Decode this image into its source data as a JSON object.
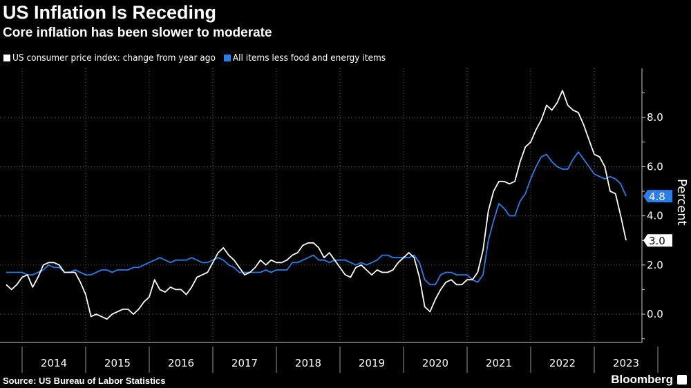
{
  "title": "US Inflation Is Receding",
  "subtitle": "Core inflation has been slower to moderate",
  "source": "Source: US Bureau of Labor Statistics",
  "brand": "Bloomberg",
  "chart_data": {
    "type": "line",
    "title": "US Inflation Is Receding",
    "subtitle": "Core inflation has been slower to moderate",
    "ylabel": "Percent",
    "ylim": [
      -1.15,
      10
    ],
    "yticks": [
      "0.0",
      "2.0",
      "4.0",
      "6.0",
      "8.0"
    ],
    "ytick_values": [
      0,
      2,
      4,
      6,
      8
    ],
    "xtick_labels": [
      "2014",
      "2015",
      "2016",
      "2017",
      "2018",
      "2019",
      "2020",
      "2021",
      "2022",
      "2023"
    ],
    "x_start": "2013-09",
    "x_end": "2023-06",
    "frequency": "monthly",
    "grid": true,
    "legend": "top-left",
    "series": [
      {
        "name": "US consumer price index: change from year ago",
        "color": "#ffffff",
        "end_label": "3.0",
        "values": [
          1.2,
          1.0,
          1.2,
          1.5,
          1.6,
          1.1,
          1.5,
          2.0,
          2.1,
          2.1,
          2.0,
          1.7,
          1.7,
          1.7,
          1.3,
          0.8,
          -0.1,
          0.0,
          -0.1,
          -0.2,
          0.0,
          0.1,
          0.2,
          0.2,
          0.0,
          0.2,
          0.5,
          0.7,
          1.4,
          1.0,
          0.9,
          1.1,
          1.0,
          1.0,
          0.8,
          1.1,
          1.5,
          1.6,
          1.7,
          2.1,
          2.5,
          2.7,
          2.4,
          2.2,
          1.9,
          1.6,
          1.7,
          1.9,
          2.2,
          2.0,
          2.2,
          2.1,
          2.1,
          2.2,
          2.4,
          2.5,
          2.8,
          2.9,
          2.9,
          2.7,
          2.3,
          2.5,
          2.2,
          1.9,
          1.6,
          1.5,
          1.9,
          2.0,
          1.8,
          1.6,
          1.8,
          1.7,
          1.7,
          1.8,
          2.1,
          2.3,
          2.5,
          2.3,
          1.5,
          0.3,
          0.1,
          0.6,
          1.0,
          1.3,
          1.4,
          1.2,
          1.2,
          1.4,
          1.4,
          1.7,
          2.6,
          4.2,
          5.0,
          5.4,
          5.4,
          5.3,
          5.4,
          6.2,
          6.8,
          7.0,
          7.5,
          7.9,
          8.5,
          8.3,
          8.6,
          9.1,
          8.5,
          8.3,
          8.2,
          7.7,
          7.1,
          6.5,
          6.4,
          6.0,
          5.0,
          4.9,
          4.0,
          3.0
        ]
      },
      {
        "name": "All items less food and energy items",
        "color": "#2b7de9",
        "end_label": "4.8",
        "values": [
          1.7,
          1.7,
          1.7,
          1.7,
          1.6,
          1.6,
          1.7,
          1.8,
          2.0,
          1.9,
          1.9,
          1.7,
          1.7,
          1.8,
          1.7,
          1.6,
          1.6,
          1.7,
          1.8,
          1.8,
          1.7,
          1.8,
          1.8,
          1.8,
          1.9,
          1.9,
          2.0,
          2.1,
          2.2,
          2.3,
          2.2,
          2.1,
          2.2,
          2.2,
          2.2,
          2.3,
          2.2,
          2.1,
          2.1,
          2.2,
          2.3,
          2.2,
          2.0,
          1.9,
          1.7,
          1.7,
          1.7,
          1.7,
          1.7,
          1.8,
          1.7,
          1.8,
          1.8,
          1.8,
          2.1,
          2.1,
          2.2,
          2.3,
          2.4,
          2.2,
          2.2,
          2.1,
          2.2,
          2.2,
          2.2,
          2.1,
          2.0,
          2.1,
          2.0,
          2.1,
          2.2,
          2.4,
          2.4,
          2.3,
          2.3,
          2.3,
          2.3,
          2.4,
          2.1,
          1.4,
          1.2,
          1.2,
          1.6,
          1.7,
          1.7,
          1.6,
          1.6,
          1.6,
          1.4,
          1.3,
          1.6,
          3.0,
          3.8,
          4.5,
          4.3,
          4.0,
          4.0,
          4.6,
          4.9,
          5.5,
          6.0,
          6.4,
          6.5,
          6.2,
          6.0,
          5.9,
          5.9,
          6.3,
          6.6,
          6.3,
          6.0,
          5.7,
          5.6,
          5.5,
          5.6,
          5.5,
          5.3,
          4.8
        ]
      }
    ]
  }
}
